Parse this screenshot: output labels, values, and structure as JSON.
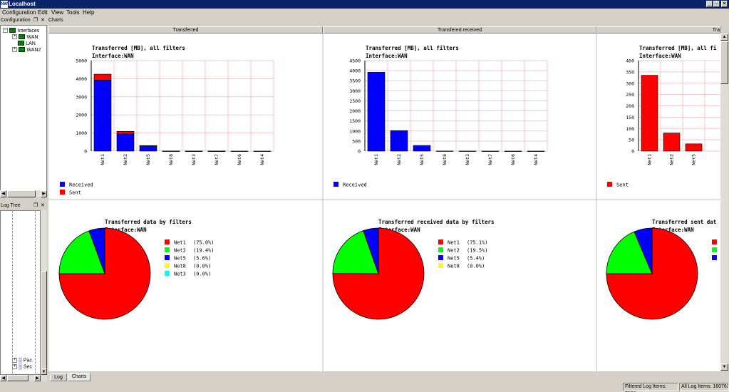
{
  "window": {
    "title": "Localhost",
    "app_icon": "app-icon"
  },
  "menu": [
    "Configuration",
    "Edit",
    "View",
    "Tools",
    "Help"
  ],
  "config_panel": {
    "title": "Configuration",
    "tree": {
      "root": "Interfaces",
      "children": [
        "WAN",
        "LAN",
        "WAN2"
      ]
    }
  },
  "logtree_panel": {
    "title": "Log Tree",
    "items": [
      "Pac",
      "Sec"
    ]
  },
  "charts_panel": {
    "title": "Charts"
  },
  "columns": [
    "Transferred",
    "Transfered received",
    "Tra"
  ],
  "colors": {
    "received": "#0000ff",
    "sent": "#ff0000",
    "net2": "#00ff00",
    "net8": "#ffff00",
    "net3": "#00ffff",
    "grid": "#f0c8c8"
  },
  "chart_data": [
    {
      "type": "bar",
      "stacked": true,
      "title": "Transferred [MB], all filters",
      "subtitle": "Interface:WAN",
      "categories": [
        "Net1",
        "Net2",
        "Net5",
        "Net8",
        "Net3",
        "Net7",
        "Net6",
        "Net4"
      ],
      "ylim": [
        0,
        5000
      ],
      "yticks": [
        0,
        1000,
        2000,
        3000,
        4000,
        5000
      ],
      "series": [
        {
          "name": "Received",
          "color": "#0000ff",
          "values": [
            3920,
            950,
            290,
            5,
            3,
            2,
            1,
            1
          ]
        },
        {
          "name": "Sent",
          "color": "#ff0000",
          "values": [
            330,
            140,
            15,
            1,
            1,
            1,
            0,
            0
          ]
        }
      ],
      "legend": "bottom-left",
      "grid": true
    },
    {
      "type": "bar",
      "title": "Transferred [MB], all filters",
      "subtitle": "Interface:WAN",
      "categories": [
        "Net1",
        "Net2",
        "Net5",
        "Net8",
        "Net3",
        "Net7",
        "Net6",
        "Net4"
      ],
      "ylim": [
        0,
        4500
      ],
      "yticks": [
        0,
        500,
        1000,
        1500,
        2000,
        2500,
        3000,
        3500,
        4000,
        4500
      ],
      "series": [
        {
          "name": "Received",
          "color": "#0000ff",
          "values": [
            3920,
            1020,
            280,
            5,
            3,
            2,
            1,
            1
          ]
        }
      ],
      "legend": "bottom-left",
      "grid": true
    },
    {
      "type": "bar",
      "title": "Transferred [MB], all fi",
      "subtitle": "Interface:WAN",
      "categories": [
        "Net1",
        "Net2",
        "Net5"
      ],
      "ylim": [
        0,
        400
      ],
      "yticks": [
        0,
        50,
        100,
        150,
        200,
        250,
        300,
        350,
        400
      ],
      "series": [
        {
          "name": "Sent",
          "color": "#ff0000",
          "values": [
            335,
            80,
            32
          ]
        }
      ],
      "legend": "bottom-left",
      "grid": true
    },
    {
      "type": "pie",
      "title": "Transferred data by filters",
      "subtitle": "Interface:WAN",
      "slices": [
        {
          "label": "Net1",
          "pct": "(75.0%)",
          "value": 75.0,
          "color": "#ff0000"
        },
        {
          "label": "Net2",
          "pct": "(19.4%)",
          "value": 19.4,
          "color": "#00ff00"
        },
        {
          "label": "Net5",
          "pct": "(5.6%)",
          "value": 5.6,
          "color": "#0000ff"
        },
        {
          "label": "Net8",
          "pct": "(0.0%)",
          "value": 0.0,
          "color": "#ffff00"
        },
        {
          "label": "Net3",
          "pct": "(0.0%)",
          "value": 0.0,
          "color": "#00ffff"
        }
      ]
    },
    {
      "type": "pie",
      "title": "Transferred received data by filters",
      "subtitle": "Interface:WAN",
      "slices": [
        {
          "label": "Net1",
          "pct": "(75.1%)",
          "value": 75.1,
          "color": "#ff0000"
        },
        {
          "label": "Net2",
          "pct": "(19.5%)",
          "value": 19.5,
          "color": "#00ff00"
        },
        {
          "label": "Net5",
          "pct": "(5.4%)",
          "value": 5.4,
          "color": "#0000ff"
        },
        {
          "label": "Net8",
          "pct": "(0.0%)",
          "value": 0.0,
          "color": "#ffff00"
        }
      ]
    },
    {
      "type": "pie",
      "title": "Transferred sent dat",
      "subtitle": "Interface:WAN",
      "slices": [
        {
          "label": "",
          "pct": "",
          "value": 75,
          "color": "#ff0000"
        },
        {
          "label": "",
          "pct": "",
          "value": 18.6,
          "color": "#00ff00"
        },
        {
          "label": "",
          "pct": "",
          "value": 6.4,
          "color": "#0000ff"
        }
      ]
    }
  ],
  "bottom_tabs": [
    "Log",
    "Charts"
  ],
  "status": {
    "filtered": "Filtered Log Items: 7128",
    "all": "All Log Items: 160761"
  }
}
